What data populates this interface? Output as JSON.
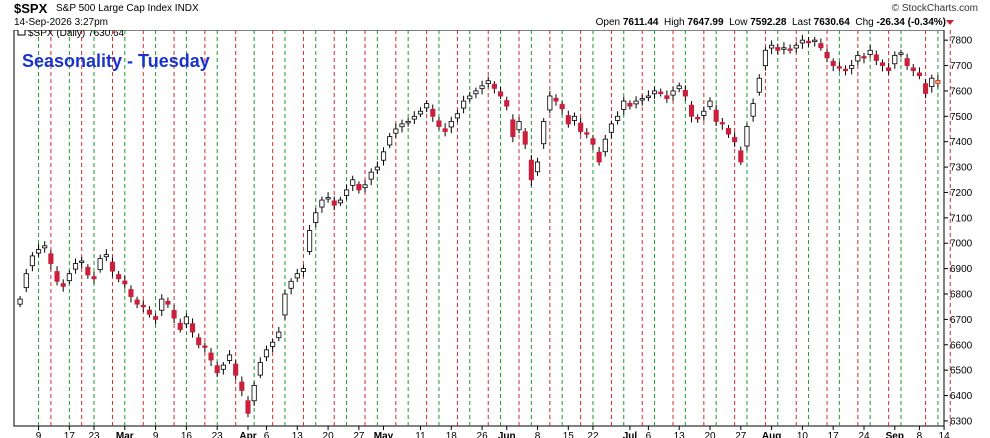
{
  "header": {
    "symbol": "$SPX",
    "description": "S&P 500 Large Cap Index  INDX",
    "date": "14-Sep-2026 3:27pm",
    "brand": "© StockCharts.com",
    "open_label": "Open",
    "open": "7611.44",
    "high_label": "High",
    "high": "7647.99",
    "low_label": "Low",
    "low": "7592.28",
    "last_label": "Last",
    "last": "7630.64",
    "chg_label": "Chg",
    "chg": "-26.34 (-0.34%)"
  },
  "legend": {
    "text": "$SPX (Daily) 7630.64"
  },
  "annotation": {
    "title": "Seasonality - Tuesday"
  },
  "colors": {
    "up": "#ffffff",
    "down": "#cc1f3a",
    "outline": "#000000",
    "red_line": "#d62b2b",
    "green_line": "#1e9a2a",
    "title": "#1a33cc",
    "current": "#f5c04a"
  },
  "chart_data": {
    "type": "candlestick",
    "title": "Seasonality - Tuesday",
    "ylim": [
      6280,
      7840
    ],
    "y_ticks": [
      6300,
      6400,
      6500,
      6600,
      6700,
      6800,
      6900,
      7000,
      7100,
      7200,
      7300,
      7400,
      7500,
      7600,
      7700,
      7800
    ],
    "x_ticks": [
      {
        "i": 3,
        "label": "9"
      },
      {
        "i": 8,
        "label": "17"
      },
      {
        "i": 12,
        "label": "23"
      },
      {
        "i": 17,
        "label": "Mar",
        "bold": true
      },
      {
        "i": 22,
        "label": "9"
      },
      {
        "i": 27,
        "label": "16"
      },
      {
        "i": 32,
        "label": "23"
      },
      {
        "i": 37,
        "label": "Apr",
        "bold": true
      },
      {
        "i": 40,
        "label": "6"
      },
      {
        "i": 45,
        "label": "13"
      },
      {
        "i": 50,
        "label": "20"
      },
      {
        "i": 55,
        "label": "27"
      },
      {
        "i": 59,
        "label": "May",
        "bold": true
      },
      {
        "i": 65,
        "label": "11"
      },
      {
        "i": 70,
        "label": "18"
      },
      {
        "i": 75,
        "label": "26"
      },
      {
        "i": 79,
        "label": "Jun",
        "bold": true
      },
      {
        "i": 84,
        "label": "8"
      },
      {
        "i": 89,
        "label": "15"
      },
      {
        "i": 93,
        "label": "22"
      },
      {
        "i": 99,
        "label": "Jul",
        "bold": true
      },
      {
        "i": 102,
        "label": "6"
      },
      {
        "i": 107,
        "label": "13"
      },
      {
        "i": 112,
        "label": "20"
      },
      {
        "i": 117,
        "label": "27"
      },
      {
        "i": 122,
        "label": "Aug",
        "bold": true
      },
      {
        "i": 127,
        "label": "10"
      },
      {
        "i": 132,
        "label": "17"
      },
      {
        "i": 137,
        "label": "24"
      },
      {
        "i": 142,
        "label": "Sep",
        "bold": true
      },
      {
        "i": 146,
        "label": "8"
      },
      {
        "i": 150,
        "label": "14"
      }
    ],
    "red_lines": [
      5,
      10,
      15,
      20,
      25,
      30,
      35,
      41,
      46,
      51,
      56,
      61,
      66,
      71,
      76,
      81,
      86,
      91,
      96,
      101,
      106,
      111,
      116,
      121,
      126,
      131,
      136,
      141,
      147,
      151
    ],
    "green_lines": [
      3,
      8,
      12,
      17,
      22,
      27,
      32,
      38,
      43,
      48,
      53,
      58,
      63,
      68,
      73,
      78,
      83,
      88,
      93,
      98,
      103,
      108,
      113,
      118,
      123,
      128,
      133,
      138,
      143,
      149
    ],
    "close": [
      6780,
      6880,
      6950,
      6975,
      6990,
      6920,
      6850,
      6830,
      6880,
      6920,
      6930,
      6875,
      6860,
      6940,
      6955,
      6890,
      6860,
      6840,
      6790,
      6760,
      6750,
      6720,
      6700,
      6780,
      6760,
      6705,
      6660,
      6710,
      6650,
      6600,
      6590,
      6540,
      6490,
      6520,
      6560,
      6480,
      6420,
      6330,
      6440,
      6530,
      6580,
      6610,
      6650,
      6800,
      6850,
      6880,
      6900,
      7050,
      7120,
      7170,
      7180,
      7150,
      7170,
      7210,
      7250,
      7210,
      7230,
      7280,
      7300,
      7360,
      7420,
      7450,
      7470,
      7480,
      7500,
      7520,
      7550,
      7500,
      7460,
      7440,
      7480,
      7510,
      7560,
      7580,
      7600,
      7620,
      7640,
      7610,
      7580,
      7540,
      7420,
      7480,
      7390,
      7250,
      7320,
      7480,
      7580,
      7560,
      7530,
      7470,
      7500,
      7440,
      7430,
      7390,
      7320,
      7410,
      7470,
      7500,
      7560,
      7540,
      7560,
      7570,
      7580,
      7600,
      7590,
      7570,
      7600,
      7620,
      7580,
      7500,
      7490,
      7520,
      7560,
      7480,
      7470,
      7430,
      7400,
      7320,
      7460,
      7550,
      7650,
      7760,
      7780,
      7760,
      7770,
      7760,
      7780,
      7800,
      7790,
      7800,
      7770,
      7730,
      7700,
      7690,
      7680,
      7700,
      7740,
      7730,
      7760,
      7720,
      7700,
      7680,
      7740,
      7750,
      7700,
      7680,
      7660,
      7590,
      7650,
      7630
    ]
  }
}
